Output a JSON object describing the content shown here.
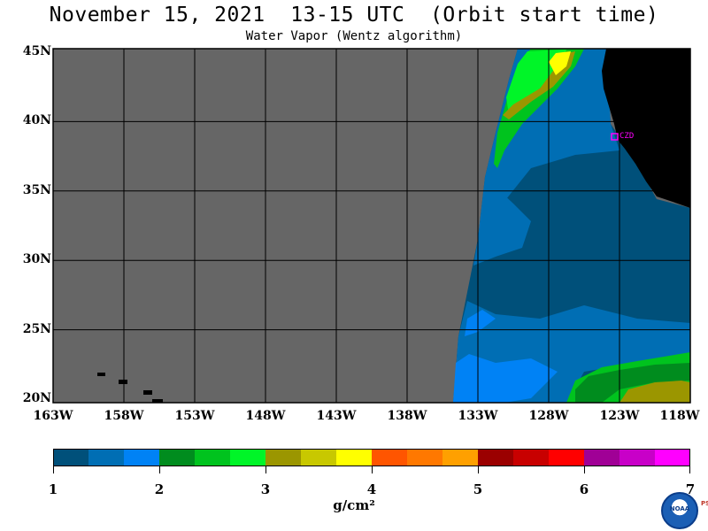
{
  "header": {
    "title": "November 15, 2021  13-15 UTC  (Orbit start time)",
    "subtitle": "Water Vapor (Wentz algorithm)"
  },
  "map": {
    "lat_labels": [
      "45N",
      "40N",
      "35N",
      "30N",
      "25N",
      "20N"
    ],
    "lon_labels": [
      "163W",
      "158W",
      "153W",
      "148W",
      "143W",
      "138W",
      "133W",
      "128W",
      "123W",
      "118W"
    ],
    "lat_range": [
      20,
      45
    ],
    "lon_range": [
      -163,
      -118
    ],
    "station_label": "CZD",
    "colors": {
      "no_data": "#666666",
      "land": "#000000",
      "grid": "#000000",
      "station": "#ff00ff"
    }
  },
  "colorbar": {
    "colors": [
      "#00507a",
      "#006eb4",
      "#0082f5",
      "#008c1e",
      "#00c31e",
      "#00f528",
      "#9b9600",
      "#c8c800",
      "#ffff00",
      "#ff5500",
      "#ff7800",
      "#ffa000",
      "#9b0000",
      "#c80000",
      "#ff0000",
      "#a00096",
      "#c800c8",
      "#ff00ff"
    ],
    "ticks": [
      "1",
      "2",
      "3",
      "4",
      "5",
      "6",
      "7"
    ],
    "unit": "g/cm²"
  },
  "logo": {
    "text": "NOAA",
    "side_text": "PSL"
  }
}
